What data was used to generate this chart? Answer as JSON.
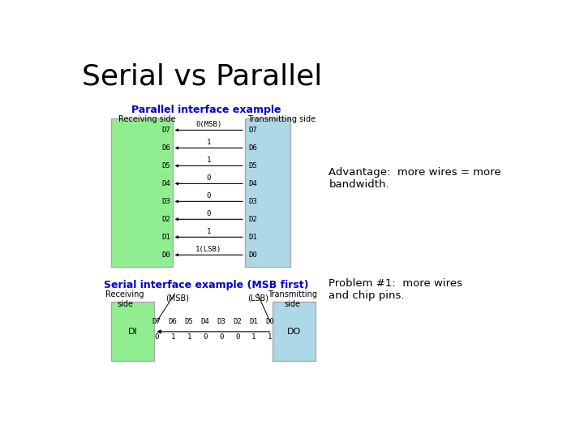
{
  "title": "Serial vs Parallel",
  "title_fontsize": 26,
  "title_color": "#000000",
  "bg_color": "#ffffff",
  "parallel_title": "Parallel interface example",
  "parallel_title_color": "#0000cc",
  "parallel_title_fontsize": 9,
  "receiving_label": "Receiving side",
  "transmitting_label": "Transmitting side",
  "serial_title": "Serial interface example (MSB first)",
  "serial_title_color": "#0000cc",
  "serial_title_fontsize": 9,
  "bits_labels": [
    "D7",
    "D6",
    "D5",
    "D4",
    "D3",
    "D2",
    "D1",
    "D0"
  ],
  "bit_values": [
    "0(MSB)",
    "1",
    "1",
    "0",
    "0",
    "0",
    "1",
    "1(LSB)"
  ],
  "bit_vals_serial": [
    "0",
    "1",
    "1",
    "0",
    "0",
    "0",
    "1",
    "1"
  ],
  "advantage_text": "Advantage:  more wires = more\nbandwidth.",
  "problem_text": "Problem #1:  more wires\nand chip pins.",
  "green_color": "#90ee90",
  "blue_color": "#add8e6"
}
